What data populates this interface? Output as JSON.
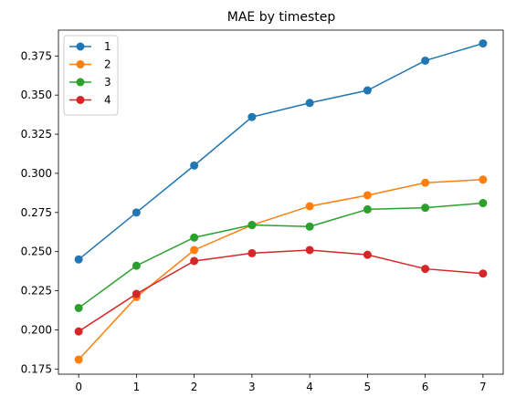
{
  "chart_data": {
    "type": "line",
    "title": "MAE by timestep",
    "xlabel": "",
    "ylabel": "",
    "x": [
      0,
      1,
      2,
      3,
      4,
      5,
      6,
      7
    ],
    "xlim": [
      -0.35,
      7.35
    ],
    "ylim": [
      0.1717,
      0.3915
    ],
    "yticks": [
      0.175,
      0.2,
      0.225,
      0.25,
      0.275,
      0.3,
      0.325,
      0.35,
      0.375
    ],
    "ytick_labels": [
      "0.175",
      "0.200",
      "0.225",
      "0.250",
      "0.275",
      "0.300",
      "0.325",
      "0.350",
      "0.375"
    ],
    "xtick_labels": [
      "0",
      "1",
      "2",
      "3",
      "4",
      "5",
      "6",
      "7"
    ],
    "grid": false,
    "legend": "top-left",
    "marker": "circle",
    "series": [
      {
        "name": "1",
        "color": "#1f77b4",
        "values": [
          0.245,
          0.275,
          0.305,
          0.336,
          0.345,
          0.353,
          0.372,
          0.383
        ]
      },
      {
        "name": "2",
        "color": "#ff7f0e",
        "values": [
          0.181,
          0.221,
          0.251,
          0.267,
          0.279,
          0.286,
          0.294,
          0.296
        ]
      },
      {
        "name": "3",
        "color": "#2ca02c",
        "values": [
          0.214,
          0.241,
          0.259,
          0.267,
          0.266,
          0.277,
          0.278,
          0.281
        ]
      },
      {
        "name": "4",
        "color": "#d62728",
        "values": [
          0.199,
          0.223,
          0.244,
          0.249,
          0.251,
          0.248,
          0.239,
          0.236
        ]
      }
    ]
  }
}
